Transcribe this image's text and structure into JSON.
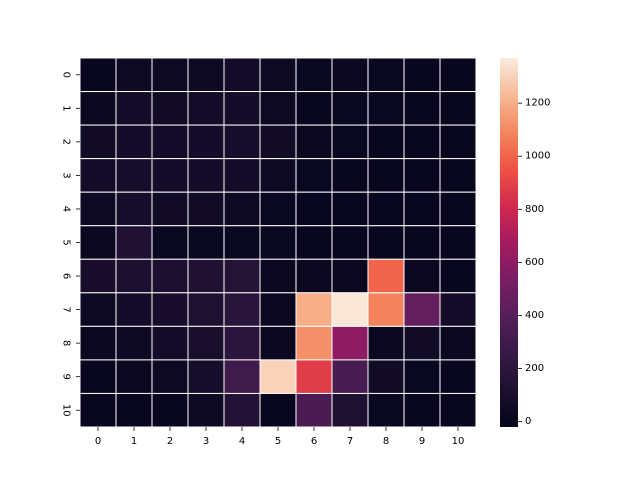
{
  "chart_data": {
    "type": "heatmap",
    "title": "",
    "xlabel": "",
    "ylabel": "",
    "x_labels": [
      "0",
      "1",
      "2",
      "3",
      "4",
      "5",
      "6",
      "7",
      "8",
      "9",
      "10"
    ],
    "y_labels": [
      "0",
      "1",
      "2",
      "3",
      "4",
      "5",
      "6",
      "7",
      "8",
      "9",
      "10"
    ],
    "values": [
      [
        10,
        40,
        30,
        40,
        60,
        25,
        15,
        20,
        15,
        10,
        5
      ],
      [
        20,
        60,
        50,
        60,
        70,
        25,
        10,
        15,
        15,
        10,
        5
      ],
      [
        50,
        70,
        60,
        70,
        80,
        50,
        20,
        15,
        10,
        10,
        5
      ],
      [
        60,
        80,
        70,
        70,
        60,
        30,
        15,
        10,
        10,
        10,
        5
      ],
      [
        40,
        80,
        50,
        50,
        30,
        15,
        10,
        10,
        10,
        10,
        5
      ],
      [
        20,
        130,
        15,
        15,
        15,
        15,
        10,
        10,
        10,
        10,
        10
      ],
      [
        90,
        110,
        110,
        130,
        160,
        20,
        20,
        20,
        1000,
        20,
        10
      ],
      [
        30,
        70,
        90,
        120,
        180,
        20,
        1200,
        1360,
        1080,
        450,
        60
      ],
      [
        20,
        40,
        60,
        100,
        200,
        20,
        1120,
        600,
        20,
        50,
        20
      ],
      [
        10,
        20,
        30,
        80,
        300,
        1300,
        880,
        330,
        50,
        15,
        10
      ],
      [
        10,
        10,
        10,
        30,
        150,
        10,
        350,
        120,
        15,
        10,
        10
      ]
    ],
    "colorbar": {
      "min": -20,
      "max": 1370,
      "ticks": [
        0,
        200,
        400,
        600,
        800,
        1000,
        1200
      ],
      "colormap": "rocket"
    },
    "grid_line_color": "#ffffff",
    "legend": "colorbar-right"
  }
}
